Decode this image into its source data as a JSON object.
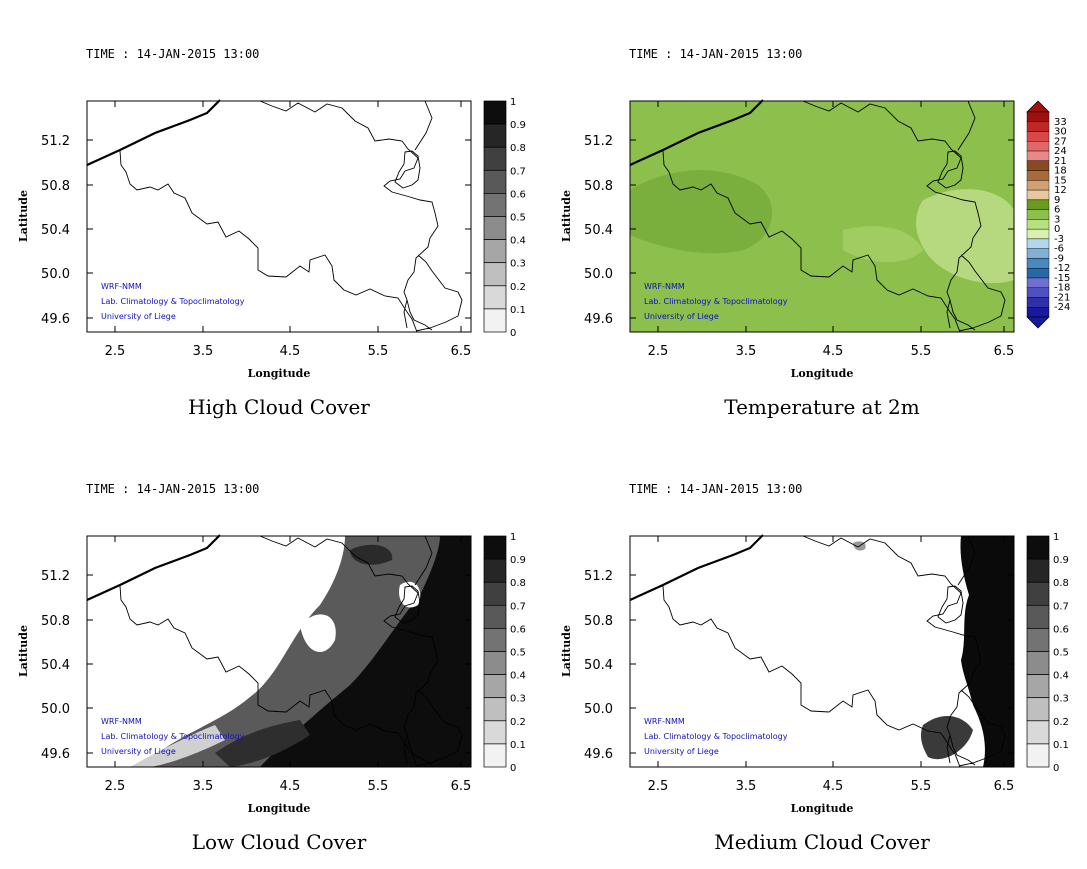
{
  "panels": [
    {
      "id": "high",
      "time": "TIME : 14-JAN-2015 13:00",
      "title": "High Cloud Cover",
      "xlabel": "Longitude",
      "ylabel": "Latitude",
      "x_ticks": [
        "2.5",
        "3.5",
        "4.5",
        "5.5",
        "6.5"
      ],
      "y_ticks": [
        "51.2",
        "50.8",
        "50.4",
        "50.0",
        "49.6"
      ],
      "colorbar": {
        "type": "gray",
        "labels": [
          "1",
          "0.9",
          "0.8",
          "0.7",
          "0.6",
          "0.5",
          "0.4",
          "0.3",
          "0.2",
          "0.1",
          "0"
        ]
      },
      "credits": [
        "WRF-NMM",
        "Lab. Climatology & Topoclimatology",
        "University of Liege"
      ],
      "field": "none"
    },
    {
      "id": "temp",
      "time": "TIME : 14-JAN-2015 13:00",
      "title": "Temperature at 2m",
      "xlabel": "Longitude",
      "ylabel": "Latitude",
      "x_ticks": [
        "2.5",
        "3.5",
        "4.5",
        "5.5",
        "6.5"
      ],
      "y_ticks": [
        "51.2",
        "50.8",
        "50.4",
        "50.0",
        "49.6"
      ],
      "colorbar": {
        "type": "temp",
        "labels": [
          "33",
          "30",
          "27",
          "24",
          "21",
          "18",
          "15",
          "12",
          "9",
          "6",
          "3",
          "0",
          "-3",
          "-6",
          "-9",
          "-12",
          "-15",
          "-18",
          "-21",
          "-24"
        ]
      },
      "credits": [
        "WRF-NMM",
        "Lab. Climatology & Topoclimatology",
        "University of Liege"
      ],
      "field": "temp"
    },
    {
      "id": "low",
      "time": "TIME : 14-JAN-2015 13:00",
      "title": "Low Cloud Cover",
      "xlabel": "Longitude",
      "ylabel": "Latitude",
      "x_ticks": [
        "2.5",
        "3.5",
        "4.5",
        "5.5",
        "6.5"
      ],
      "y_ticks": [
        "51.2",
        "50.8",
        "50.4",
        "50.0",
        "49.6"
      ],
      "colorbar": {
        "type": "gray",
        "labels": [
          "1",
          "0.9",
          "0.8",
          "0.7",
          "0.6",
          "0.5",
          "0.4",
          "0.3",
          "0.2",
          "0.1",
          "0"
        ]
      },
      "credits": [
        "WRF-NMM",
        "Lab. Climatology & Topoclimatology",
        "University of Liege"
      ],
      "field": "low"
    },
    {
      "id": "medium",
      "time": "TIME : 14-JAN-2015 13:00",
      "title": "Medium Cloud Cover",
      "xlabel": "Longitude",
      "ylabel": "Latitude",
      "x_ticks": [
        "2.5",
        "3.5",
        "4.5",
        "5.5",
        "6.5"
      ],
      "y_ticks": [
        "51.2",
        "50.8",
        "50.4",
        "50.0",
        "49.6"
      ],
      "colorbar": {
        "type": "gray",
        "labels": [
          "1",
          "0.9",
          "0.8",
          "0.7",
          "0.6",
          "0.5",
          "0.4",
          "0.3",
          "0.2",
          "0.1",
          "0"
        ]
      },
      "credits": [
        "WRF-NMM",
        "Lab. Climatology & Topoclimatology",
        "University of Liege"
      ],
      "field": "medium"
    }
  ],
  "colors": {
    "credit": "#1010c0",
    "temp_fill": "#8cbf4c",
    "temp_dark": "#78ad3c",
    "temp_light": "#c4e090"
  }
}
